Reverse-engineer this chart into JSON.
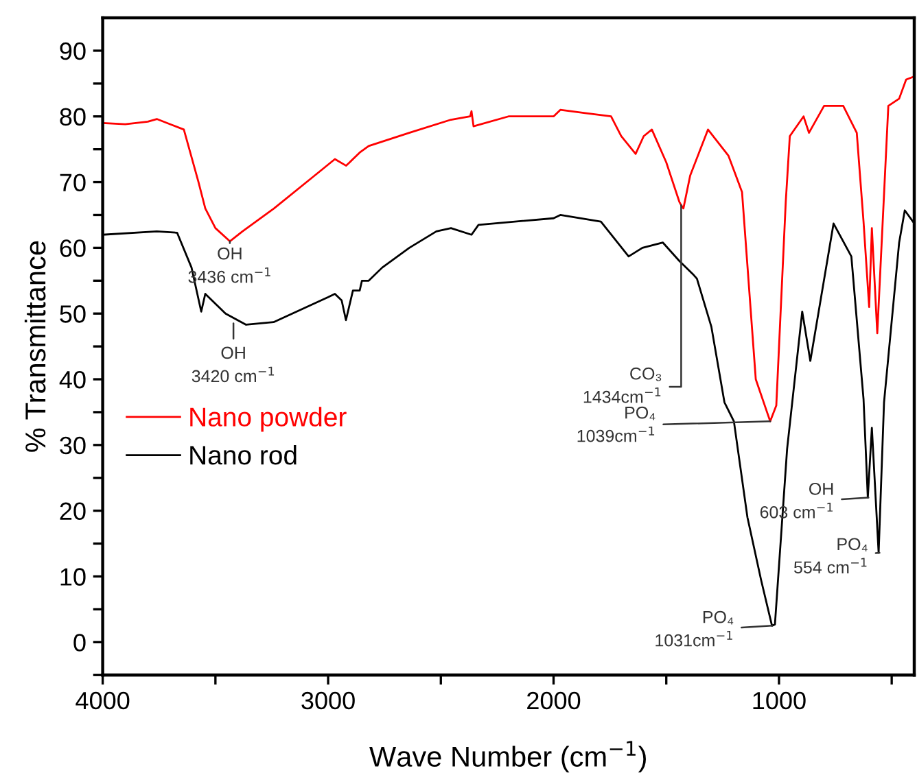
{
  "chart_data": {
    "type": "line",
    "xlabel": "Wave Number (cm$^{−1}$)",
    "ylabel": "% Transmittance",
    "xlim": [
      4000,
      400
    ],
    "xticks": [
      4000,
      {
        "value": 3500,
        "label": null
      },
      3000,
      {
        "value": 2500,
        "label": null
      },
      2000,
      {
        "value": 1500,
        "label": null
      },
      1000,
      {
        "value": 500,
        "label": null
      }
    ],
    "ylim": [
      -5,
      95
    ],
    "yticks": [
      {
        "value": -5,
        "label": null
      },
      0,
      {
        "value": 5,
        "label": null
      },
      10,
      {
        "value": 15,
        "label": null
      },
      20,
      {
        "value": 25,
        "label": null
      },
      30,
      {
        "value": 35,
        "label": null
      },
      40,
      {
        "value": 45,
        "label": null
      },
      50,
      {
        "value": 55,
        "label": null
      },
      60,
      {
        "value": 65,
        "label": null
      },
      70,
      {
        "value": 75,
        "label": null
      },
      80,
      {
        "value": 85,
        "label": null
      },
      90
    ],
    "grid": false,
    "legend": "left",
    "marker": "none",
    "line_style": "solid",
    "series": [
      {
        "name": "Nano powder",
        "color": "#ff0000",
        "x": [
          4000,
          3900,
          3800,
          3760,
          3700,
          3640,
          3575,
          3545,
          3500,
          3436,
          3380,
          3240,
          3060,
          2970,
          2920,
          2860,
          2820,
          2640,
          2455,
          2370,
          2364,
          2355,
          2200,
          2000,
          1970,
          1860,
          1745,
          1700,
          1636,
          1600,
          1564,
          1500,
          1442,
          1434,
          1424,
          1394,
          1315,
          1224,
          1164,
          1103,
          1039,
          1012,
          970,
          952,
          891,
          867,
          800,
          715,
          655,
          625,
          600,
          588,
          564,
          515,
          467,
          436,
          406
        ],
        "values": [
          79,
          78.8,
          79.2,
          79.6,
          78.8,
          78,
          70,
          66,
          63,
          61,
          62.5,
          66,
          71,
          73.5,
          72.5,
          74.5,
          75.5,
          77.5,
          79.5,
          80,
          80.8,
          78.5,
          80,
          80,
          81,
          80.5,
          80,
          77,
          74.3,
          77,
          78,
          73,
          67,
          66.5,
          66,
          71,
          78,
          74,
          68.5,
          40,
          33.6,
          36,
          67,
          77,
          80,
          77.5,
          81.6,
          81.6,
          77.5,
          64,
          51,
          63,
          47,
          81.6,
          82.7,
          85.6,
          86
        ]
      },
      {
        "name": "Nano rod",
        "color": "#000000",
        "x": [
          4000,
          3760,
          3670,
          3606,
          3563,
          3545,
          3455,
          3364,
          3242,
          3000,
          2970,
          2940,
          2921,
          2890,
          2860,
          2850,
          2820,
          2760,
          2640,
          2520,
          2455,
          2364,
          2333,
          2000,
          1970,
          1790,
          1667,
          1606,
          1515,
          1442,
          1382,
          1364,
          1300,
          1242,
          1200,
          1140,
          1079,
          1031,
          1018,
          964,
          897,
          861,
          758,
          679,
          625,
          606,
          588,
          558,
          534,
          467,
          442,
          406
        ],
        "values": [
          62,
          62.5,
          62.3,
          57,
          50.3,
          53,
          50,
          48.3,
          48.7,
          52.5,
          53,
          52,
          49,
          53.5,
          53.5,
          55,
          55,
          57,
          60,
          62.5,
          63,
          62,
          63.5,
          64.5,
          65,
          64,
          58.7,
          60,
          60.8,
          58,
          56,
          55.3,
          48,
          36.5,
          33.6,
          19,
          9.4,
          2.5,
          2.7,
          29.4,
          50.3,
          42.8,
          63.7,
          58.7,
          37,
          22,
          32.6,
          13.6,
          36.5,
          60.8,
          65.7,
          64
        ]
      }
    ],
    "annotations": [
      {
        "text": "OH\n3436 cm$^{−1}$",
        "x": 3436,
        "y": 61
      },
      {
        "text": "OH\n3420 cm$^{−1}$",
        "x": 3420,
        "y": 48.5
      },
      {
        "text": "CO₃\n1434cm$^{−1}$",
        "x": 1434,
        "y": 66.5
      },
      {
        "text": "PO₄\n1039cm$^{−1}$",
        "x": 1039,
        "y": 33.6
      },
      {
        "text": "OH\n603 cm$^{−1}$",
        "x": 603,
        "y": 22
      },
      {
        "text": "PO₄\n554 cm$^{−1}$",
        "x": 554,
        "y": 13.6
      },
      {
        "text": "PO₄\n1031cm$^{−1}$",
        "x": 1031,
        "y": 2.5
      }
    ]
  }
}
